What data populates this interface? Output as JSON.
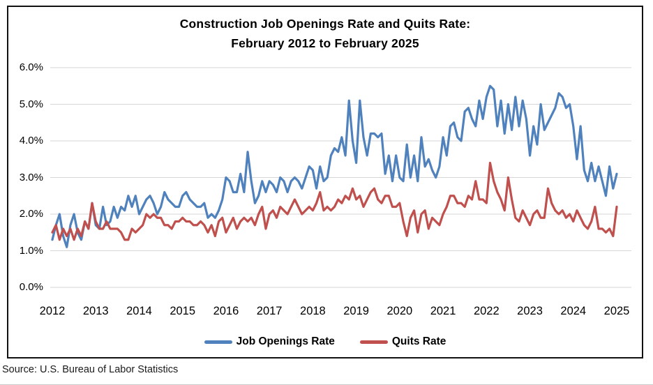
{
  "title": {
    "line1": "Construction Job Openings Rate and Quits Rate:",
    "line2": "February 2012 to February 2025"
  },
  "source": "Source: U.S. Bureau of Labor Statistics",
  "legend": [
    {
      "label": "Job Openings Rate",
      "color": "#4F81BD"
    },
    {
      "label": "Quits Rate",
      "color": "#C0504D"
    }
  ],
  "colors": {
    "job_openings": "#4F81BD",
    "quits": "#C0504D",
    "gridline": "#D6D6D6",
    "frame_border": "#111111"
  },
  "chart_data": {
    "type": "line",
    "title": "Construction Job Openings Rate and Quits Rate: February 2012 to February 2025",
    "x": {
      "start": "2012-02",
      "end": "2025-02",
      "frequency": "monthly",
      "points": 157
    },
    "x_tick_labels": [
      "2012",
      "2013",
      "2014",
      "2015",
      "2016",
      "2017",
      "2018",
      "2019",
      "2020",
      "2021",
      "2022",
      "2023",
      "2024",
      "2025"
    ],
    "y_tick_labels": [
      "0.0%",
      "1.0%",
      "2.0%",
      "3.0%",
      "4.0%",
      "5.0%",
      "6.0%"
    ],
    "ylim": [
      0,
      6
    ],
    "y_unit": "percent",
    "grid": "horizontal",
    "legend_position": "bottom",
    "series": [
      {
        "name": "Job Openings Rate",
        "color": "#4F81BD",
        "values": [
          1.3,
          1.7,
          2.0,
          1.4,
          1.1,
          1.7,
          2.0,
          1.5,
          1.3,
          1.8,
          1.6,
          2.3,
          1.7,
          1.6,
          2.2,
          1.7,
          1.8,
          2.2,
          1.9,
          2.2,
          2.1,
          2.5,
          2.2,
          2.5,
          2.0,
          2.2,
          2.4,
          2.5,
          2.3,
          2.0,
          2.2,
          2.6,
          2.4,
          2.3,
          2.2,
          2.2,
          2.5,
          2.6,
          2.4,
          2.3,
          2.2,
          2.2,
          2.3,
          1.9,
          2.0,
          1.9,
          2.1,
          2.4,
          3.0,
          2.9,
          2.6,
          2.6,
          3.1,
          2.6,
          3.7,
          2.9,
          2.3,
          2.5,
          2.9,
          2.6,
          2.9,
          2.8,
          2.6,
          3.0,
          2.9,
          2.6,
          2.9,
          3.0,
          2.9,
          2.7,
          3.0,
          3.3,
          3.2,
          2.7,
          3.3,
          2.9,
          3.0,
          3.6,
          3.8,
          3.7,
          4.1,
          3.6,
          5.1,
          4.0,
          3.4,
          5.1,
          4.1,
          3.6,
          4.2,
          4.2,
          4.1,
          4.2,
          3.1,
          3.6,
          2.9,
          3.6,
          3.0,
          2.9,
          3.9,
          3.0,
          3.6,
          2.9,
          4.1,
          3.3,
          3.5,
          3.2,
          3.0,
          3.3,
          4.1,
          3.6,
          4.4,
          4.5,
          4.1,
          4.0,
          4.8,
          4.9,
          4.6,
          4.4,
          5.1,
          4.6,
          5.2,
          5.5,
          5.4,
          4.4,
          5.1,
          4.2,
          5.0,
          4.3,
          5.2,
          4.4,
          5.1,
          4.6,
          3.6,
          4.4,
          3.9,
          5.0,
          4.3,
          4.5,
          4.7,
          4.9,
          5.3,
          5.2,
          4.9,
          5.0,
          4.4,
          3.5,
          4.4,
          3.2,
          2.9,
          3.4,
          2.9,
          3.3,
          2.9,
          2.5,
          3.3,
          2.7,
          3.1
        ]
      },
      {
        "name": "Quits Rate",
        "color": "#C0504D",
        "values": [
          1.5,
          1.7,
          1.3,
          1.6,
          1.4,
          1.6,
          1.3,
          1.6,
          1.4,
          1.8,
          1.6,
          2.3,
          1.8,
          1.6,
          1.6,
          1.8,
          1.6,
          1.6,
          1.6,
          1.5,
          1.3,
          1.3,
          1.6,
          1.5,
          1.6,
          1.7,
          2.0,
          1.9,
          2.0,
          1.9,
          1.9,
          1.7,
          1.7,
          1.6,
          1.8,
          1.8,
          1.9,
          1.8,
          1.8,
          1.7,
          1.7,
          1.8,
          1.7,
          1.5,
          1.7,
          1.4,
          1.8,
          1.9,
          1.5,
          1.7,
          1.9,
          1.6,
          1.8,
          1.9,
          1.8,
          1.9,
          1.7,
          2.0,
          2.2,
          1.6,
          2.0,
          2.1,
          1.9,
          2.2,
          2.1,
          2.0,
          2.2,
          2.4,
          2.2,
          2.0,
          2.1,
          2.2,
          2.1,
          2.3,
          2.6,
          2.1,
          2.2,
          2.1,
          2.2,
          2.4,
          2.3,
          2.5,
          2.4,
          2.7,
          2.4,
          2.5,
          2.2,
          2.4,
          2.6,
          2.7,
          2.4,
          2.3,
          2.5,
          2.5,
          2.2,
          2.2,
          2.3,
          1.8,
          1.4,
          1.9,
          2.1,
          1.5,
          2.0,
          2.1,
          1.6,
          1.9,
          1.8,
          1.7,
          2.0,
          2.2,
          2.5,
          2.5,
          2.3,
          2.3,
          2.2,
          2.5,
          2.4,
          2.9,
          2.4,
          2.4,
          2.3,
          3.4,
          2.9,
          2.6,
          2.4,
          2.1,
          3.0,
          2.4,
          1.9,
          1.8,
          2.1,
          1.9,
          1.7,
          2.0,
          2.1,
          1.9,
          1.9,
          2.7,
          2.3,
          2.1,
          2.0,
          2.1,
          1.9,
          2.0,
          1.8,
          2.1,
          1.9,
          1.7,
          1.6,
          1.8,
          2.2,
          1.6,
          1.6,
          1.5,
          1.6,
          1.4,
          2.2
        ]
      }
    ]
  }
}
